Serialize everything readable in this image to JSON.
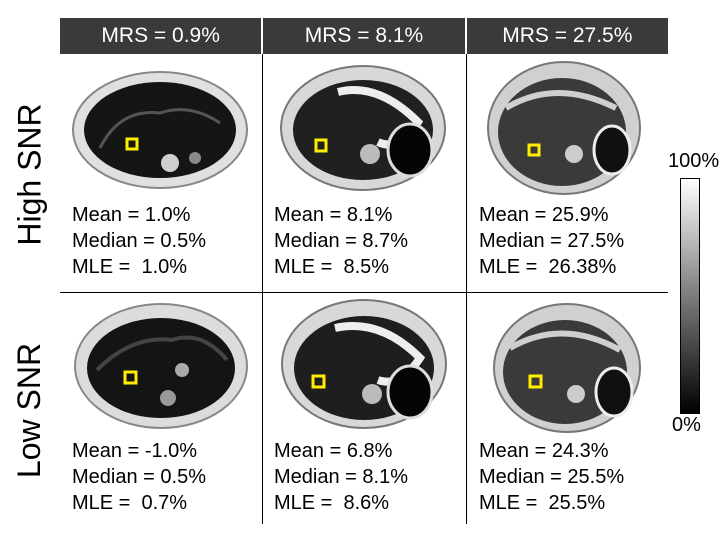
{
  "columns": [
    "MRS = 0.9%",
    "MRS = 8.1%",
    "MRS = 27.5%"
  ],
  "rows": [
    "High SNR",
    "Low SNR"
  ],
  "cells": [
    [
      {
        "mean": "Mean = 1.0%",
        "median": "Median = 0.5%",
        "mle": "MLE =  1.0%"
      },
      {
        "mean": "Mean = 8.1%",
        "median": "Median = 8.7%",
        "mle": "MLE =  8.5%"
      },
      {
        "mean": "Mean = 25.9%",
        "median": "Median = 27.5%",
        "mle": "MLE =  26.38%"
      }
    ],
    [
      {
        "mean": "Mean = -1.0%",
        "median": "Median = 0.5%",
        "mle": "MLE =  0.7%"
      },
      {
        "mean": "Mean = 6.8%",
        "median": "Median = 8.1%",
        "mle": "MLE =  8.6%"
      },
      {
        "mean": "Mean = 24.3%",
        "median": "Median = 25.5%",
        "mle": "MLE =  25.5%"
      }
    ]
  ],
  "colorbar": {
    "max_label": "100%",
    "min_label": "0%"
  },
  "colors": {
    "roi": "#ffee00",
    "header_bg": "#3a3a3a"
  }
}
